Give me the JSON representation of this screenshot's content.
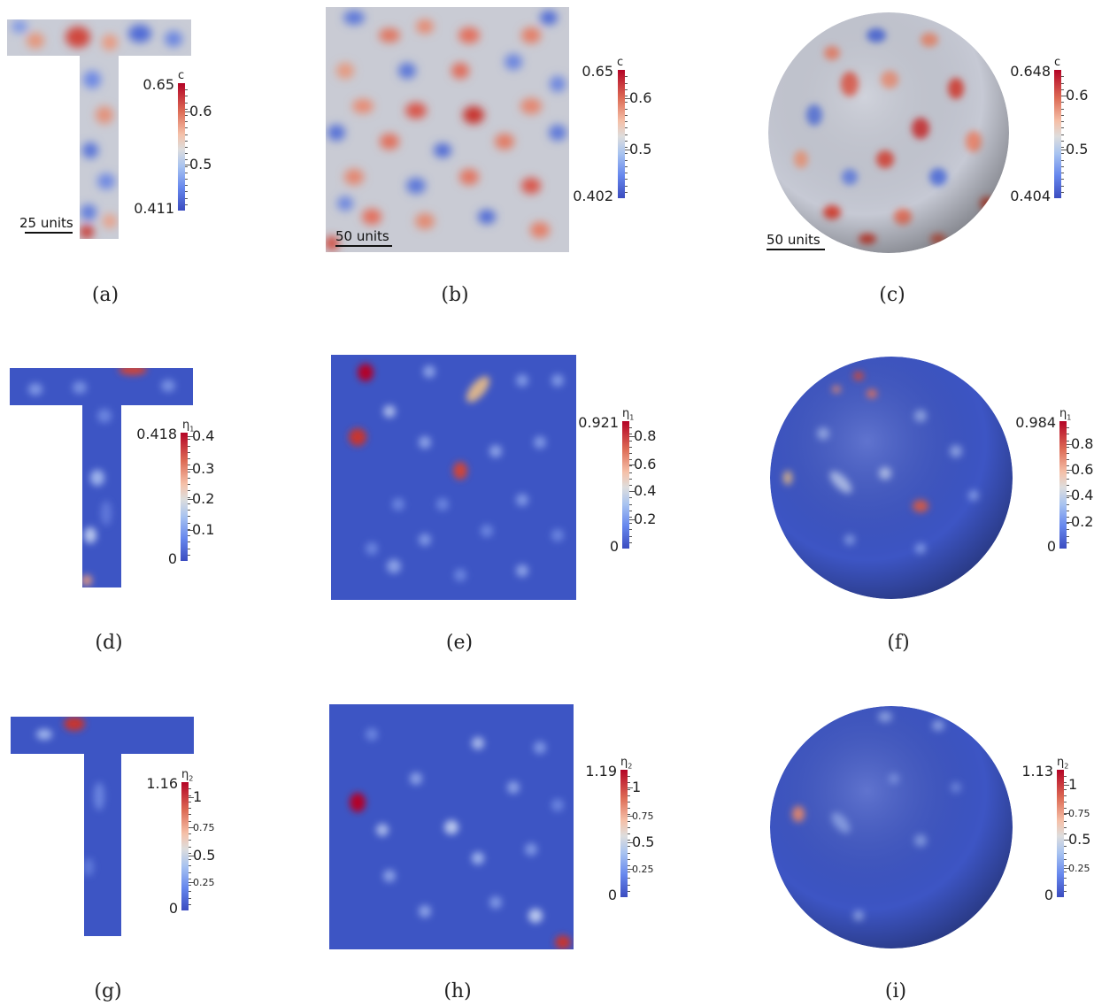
{
  "colors": {
    "low": "#3b4cc0",
    "mid": "#dddddd",
    "high": "#b40426"
  },
  "panels": {
    "a": {
      "caption": "(a)",
      "scale_label": "25 units",
      "title": "c",
      "title_sub": "",
      "min": "0.411",
      "max": "0.65",
      "ticks": [
        "0.6",
        "0.5"
      ]
    },
    "b": {
      "caption": "(b)",
      "scale_label": "50 units",
      "title": "c",
      "title_sub": "",
      "min": "0.402",
      "max": "0.65",
      "ticks": [
        "0.6",
        "0.5"
      ]
    },
    "c": {
      "caption": "(c)",
      "scale_label": "50 units",
      "title": "c",
      "title_sub": "",
      "min": "0.404",
      "max": "0.648",
      "ticks": [
        "0.6",
        "0.5"
      ]
    },
    "d": {
      "caption": "(d)",
      "title": "η",
      "title_sub": "1",
      "min": "0",
      "max": "0.418",
      "ticks": [
        "0.4",
        "0.3",
        "0.2",
        "0.1"
      ]
    },
    "e": {
      "caption": "(e)",
      "title": "η",
      "title_sub": "1",
      "min": "0",
      "max": "0.921",
      "ticks": [
        "0.8",
        "0.6",
        "0.4",
        "0.2"
      ]
    },
    "f": {
      "caption": "(f)",
      "title": "η",
      "title_sub": "1",
      "min": "0",
      "max": "0.984",
      "ticks": [
        "0.8",
        "0.6",
        "0.4",
        "0.2"
      ]
    },
    "g": {
      "caption": "(g)",
      "title": "η",
      "title_sub": "2",
      "min": "0",
      "max": "1.16",
      "ticks": [
        "1",
        "0.75",
        "0.5",
        "0.25"
      ]
    },
    "h": {
      "caption": "(h)",
      "title": "η",
      "title_sub": "2",
      "min": "0",
      "max": "1.19",
      "ticks": [
        "1",
        "0.75",
        "0.5",
        "0.25"
      ]
    },
    "i": {
      "caption": "(i)",
      "title": "η",
      "title_sub": "2",
      "min": "0",
      "max": "1.13",
      "ticks": [
        "1",
        "0.75",
        "0.5",
        "0.25"
      ]
    }
  }
}
